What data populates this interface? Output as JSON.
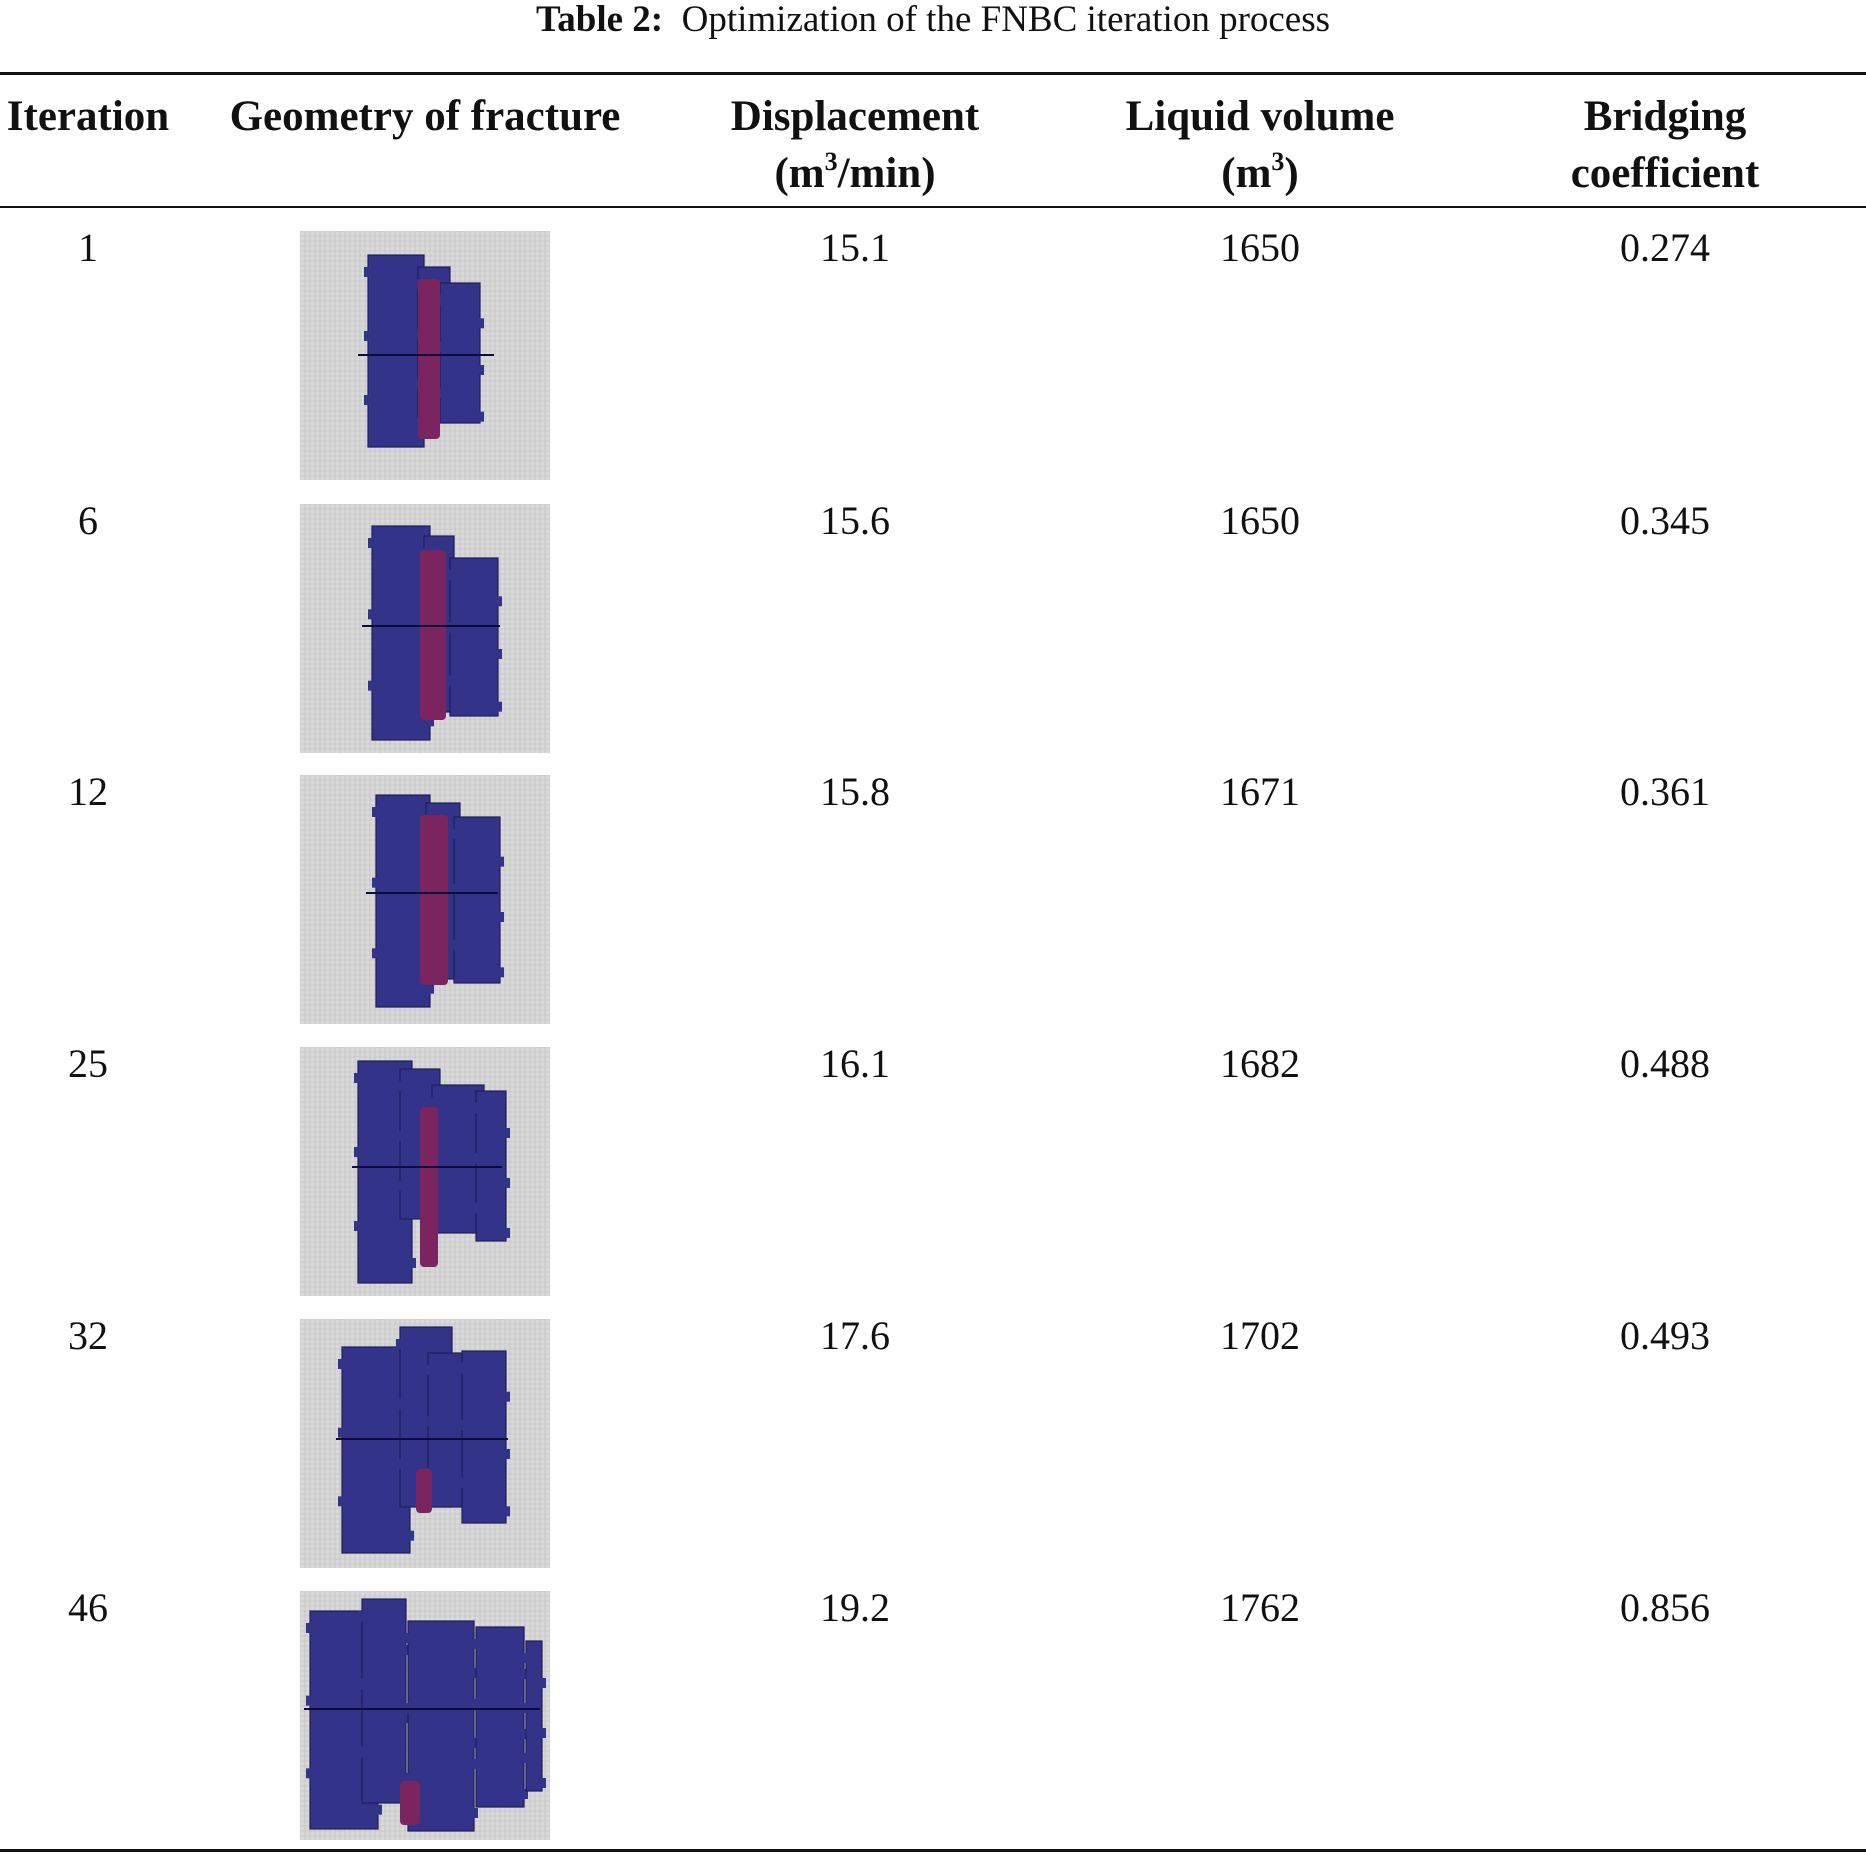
{
  "caption": {
    "label": "Table 2:",
    "title": "Optimization of the FNBC iteration process"
  },
  "columns": {
    "iteration": "Iteration",
    "geometry": "Geometry of fracture",
    "displacement_line1": "Displacement",
    "displacement_unit_pre": "(m",
    "displacement_unit_sup": "3",
    "displacement_unit_post": "/min)",
    "liquid_line1": "Liquid volume",
    "liquid_unit_pre": "(m",
    "liquid_unit_sup": "3",
    "liquid_unit_post": ")",
    "bridging_line1": "Bridging",
    "bridging_line2": "coefficient"
  },
  "rows": [
    {
      "iteration": "1",
      "displacement": "15.1",
      "liquid_volume": "1650",
      "bridging": "0.274",
      "image": "fracture-geometry-image"
    },
    {
      "iteration": "6",
      "displacement": "15.6",
      "liquid_volume": "1650",
      "bridging": "0.345",
      "image": "fracture-geometry-image"
    },
    {
      "iteration": "12",
      "displacement": "15.8",
      "liquid_volume": "1671",
      "bridging": "0.361",
      "image": "fracture-geometry-image"
    },
    {
      "iteration": "25",
      "displacement": "16.1",
      "liquid_volume": "1682",
      "bridging": "0.488",
      "image": "fracture-geometry-image"
    },
    {
      "iteration": "32",
      "displacement": "17.6",
      "liquid_volume": "1702",
      "bridging": "0.493",
      "image": "fracture-geometry-image"
    },
    {
      "iteration": "46",
      "displacement": "19.2",
      "liquid_volume": "1762",
      "bridging": "0.856",
      "image": "fracture-geometry-image"
    }
  ],
  "colors": {
    "fracture_fill": "#33338a",
    "fracture_edge": "#1f1f5a",
    "bridged_zone": "#7a2460",
    "grid_background": "#d9d9d9",
    "grid_line": "#bdbdbd"
  }
}
